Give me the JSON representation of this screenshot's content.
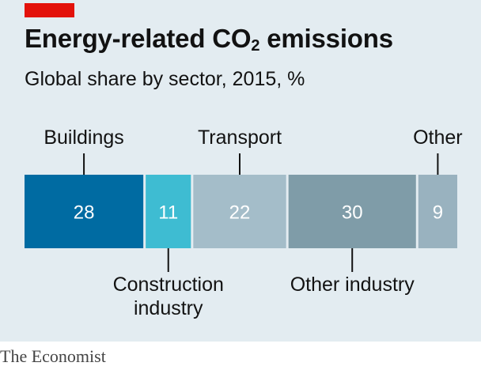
{
  "header": {
    "title_prefix": "Energy-related CO",
    "title_sub": "2",
    "title_suffix": " emissions",
    "subtitle": "Global share by sector, 2015, %"
  },
  "source": "The Economist",
  "chart_data": {
    "type": "bar",
    "orientation": "stacked-horizontal",
    "unit": "%",
    "total": 100,
    "categories": [
      "Buildings",
      "Construction industry",
      "Transport",
      "Other industry",
      "Other"
    ],
    "label_lines": [
      [
        "Buildings"
      ],
      [
        "Construction",
        "industry"
      ],
      [
        "Transport"
      ],
      [
        "Other industry"
      ],
      [
        "Other"
      ]
    ],
    "label_position": [
      "top",
      "bottom",
      "top",
      "bottom",
      "top"
    ],
    "values": [
      28,
      11,
      22,
      30,
      9
    ],
    "colors": [
      "#006ba2",
      "#3ebcd2",
      "#a4bdc9",
      "#7f9ca8",
      "#99b2bf"
    ],
    "value_label_color": "#ffffff",
    "legend": "none",
    "grid": false
  }
}
